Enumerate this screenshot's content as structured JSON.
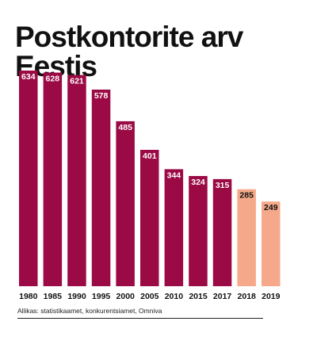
{
  "chart_data": {
    "type": "bar",
    "title": "Postkontorite arv Eestis",
    "categories": [
      "1980",
      "1985",
      "1990",
      "1995",
      "2000",
      "2005",
      "2010",
      "2015",
      "2017",
      "2018",
      "2019"
    ],
    "values": [
      634,
      628,
      621,
      578,
      485,
      401,
      344,
      324,
      315,
      285,
      249
    ],
    "xlabel": "",
    "ylabel": "",
    "ylim": [
      0,
      634
    ],
    "grid": false,
    "legend": "none",
    "colors": {
      "dark": "#9b0a45",
      "light": "#f5a98a",
      "label_dark": "#ffffff",
      "label_light": "#111111"
    },
    "light_categories": [
      "2018",
      "2019"
    ],
    "source": "Allikas: statistikaamet, konkurentsiamet, Omniva"
  }
}
